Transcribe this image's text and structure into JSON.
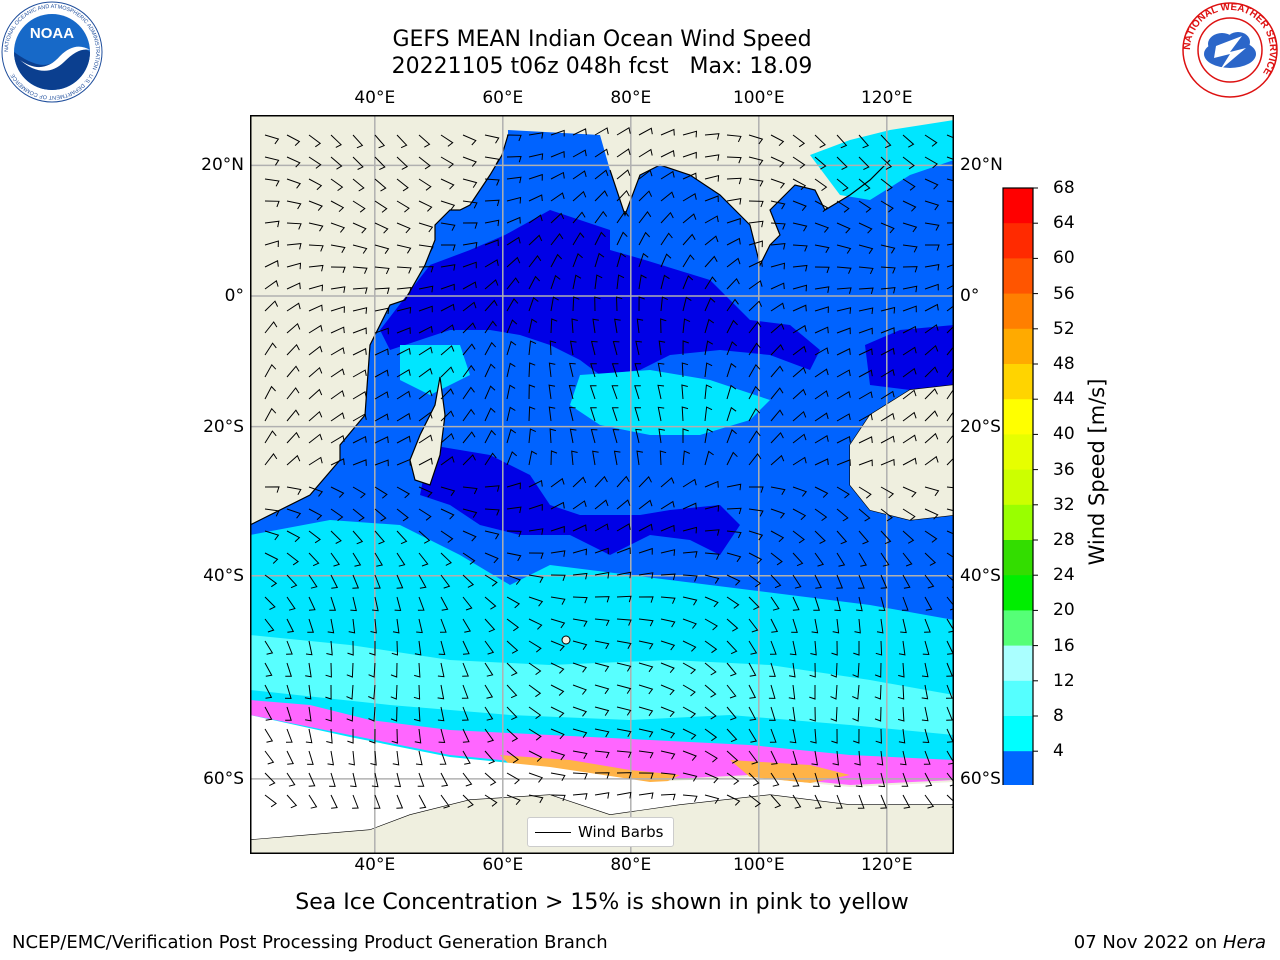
{
  "header": {
    "title_line1": "GEFS MEAN Indian Ocean Wind Speed",
    "title_line2": "20221105 t06z 048h fcst   Max: 18.09"
  },
  "logos": {
    "left": "NOAA",
    "left_ring_text": "NATIONAL OCEANIC AND ATMOSPHERIC ADMINISTRATION · U.S. DEPARTMENT OF COMMERCE",
    "right_ring_text": "NATIONAL WEATHER SERVICE"
  },
  "map": {
    "lon_ticks": [
      "40°E",
      "60°E",
      "80°E",
      "100°E",
      "120°E"
    ],
    "lat_ticks_left": [
      "20°N",
      "0°",
      "20°S",
      "40°S",
      "60°S"
    ],
    "lat_ticks_right": [
      "20°N",
      "0°",
      "20°S",
      "40°S",
      "60°S"
    ],
    "lon_values": [
      40,
      60,
      80,
      100,
      120
    ],
    "lat_values": [
      20,
      0,
      -20,
      -40,
      -60
    ],
    "colors": {
      "land": "#efefdf",
      "ocean_4_8": "#0063ff",
      "ocean_0_4": "#0000e6",
      "ocean_8_12": "#00e6ff",
      "ocean_12_16": "#58ffff",
      "ice_pink": "#ff66ff",
      "ice_orange": "#ffb347",
      "grid": "#b0b0b0"
    }
  },
  "legend": {
    "label": "Wind Barbs"
  },
  "colorbar": {
    "title": "Wind Speed [m/s]",
    "labels": [
      "68",
      "64",
      "60",
      "56",
      "52",
      "48",
      "44",
      "40",
      "36",
      "32",
      "28",
      "24",
      "20",
      "16",
      "12",
      "8",
      "4"
    ],
    "colors": [
      "#ff0000",
      "#ff2a00",
      "#ff5500",
      "#ff7f00",
      "#ffaa00",
      "#ffd400",
      "#ffff00",
      "#e6ff00",
      "#ccff00",
      "#99ff00",
      "#33dd00",
      "#00ee00",
      "#55ff77",
      "#aaffff",
      "#55ffff",
      "#00ffff",
      "#0066ff"
    ],
    "under_color": "#0000ff"
  },
  "caption": "Sea Ice Concentration > 15% is shown in pink to yellow",
  "footer": {
    "left": "NCEP/EMC/Verification Post Processing Product Generation Branch",
    "right_date": "07 Nov 2022 on ",
    "right_machine": "Hera"
  }
}
